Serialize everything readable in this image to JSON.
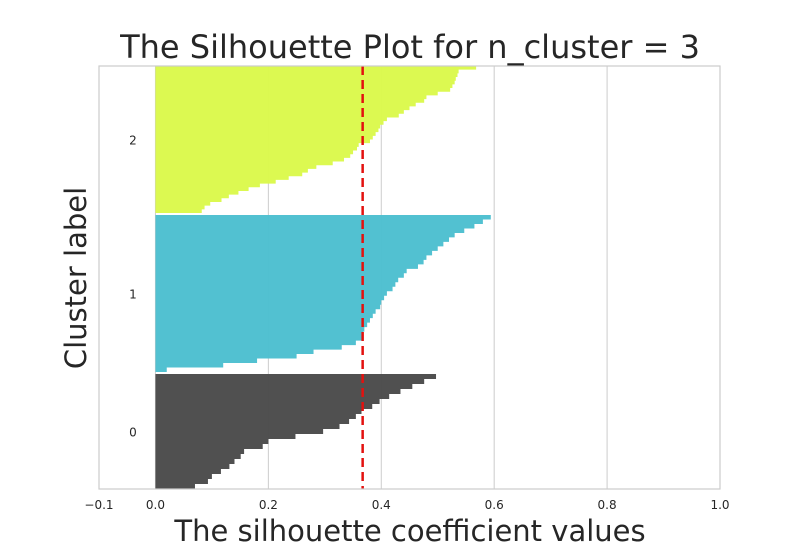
{
  "chart_data": {
    "type": "silhouette",
    "title": "The Silhouette Plot for n_cluster = 3",
    "xlabel": "The silhouette coefficient values",
    "ylabel": "Cluster label",
    "xlim": [
      -0.1,
      1.0
    ],
    "xticks": [
      -0.1,
      0.0,
      0.2,
      0.4,
      0.6,
      0.8,
      1.0
    ],
    "xtick_labels": [
      "−0.1",
      "0.0",
      "0.2",
      "0.4",
      "0.6",
      "0.8",
      "1.0"
    ],
    "average_silhouette": 0.367,
    "grid": true,
    "clusters": [
      {
        "label": "0",
        "color": "#4a4a4a",
        "steps": [
          0.497,
          0.476,
          0.455,
          0.434,
          0.414,
          0.397,
          0.384,
          0.365,
          0.355,
          0.343,
          0.326,
          0.297,
          0.248,
          0.2,
          0.19,
          0.157,
          0.151,
          0.14,
          0.131,
          0.116,
          0.1,
          0.093,
          0.07
        ]
      },
      {
        "label": "1",
        "color": "#4cbfd0",
        "steps": [
          0.594,
          0.58,
          0.565,
          0.547,
          0.53,
          0.52,
          0.51,
          0.5,
          0.49,
          0.48,
          0.475,
          0.465,
          0.445,
          0.44,
          0.43,
          0.425,
          0.42,
          0.41,
          0.405,
          0.4,
          0.398,
          0.39,
          0.385,
          0.38,
          0.375,
          0.37,
          0.368,
          0.365,
          0.355,
          0.33,
          0.28,
          0.25,
          0.18,
          0.12,
          0.02
        ]
      },
      {
        "label": "2",
        "color": "#dbf94b",
        "steps": [
          0.568,
          0.537,
          0.535,
          0.532,
          0.53,
          0.526,
          0.522,
          0.5,
          0.48,
          0.476,
          0.461,
          0.45,
          0.44,
          0.431,
          0.41,
          0.404,
          0.398,
          0.395,
          0.39,
          0.385,
          0.38,
          0.36,
          0.357,
          0.35,
          0.345,
          0.334,
          0.314,
          0.285,
          0.27,
          0.26,
          0.236,
          0.213,
          0.185,
          0.165,
          0.147,
          0.13,
          0.117,
          0.097,
          0.087,
          0.082
        ]
      }
    ]
  }
}
